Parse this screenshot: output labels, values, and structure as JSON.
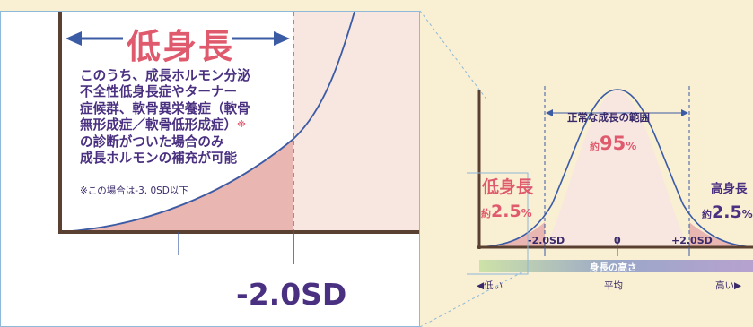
{
  "zoom_panel": {
    "title": "低身長",
    "description_lines": [
      "このうち、成長ホルモン分泌",
      "不全性低身長症やターナー",
      "症候群、軟骨異栄養症（軟骨",
      "無形成症／軟骨低形成症）"
    ],
    "description_note_mark": "※",
    "description_tail_lines": [
      "の診断がついた場合のみ",
      "成長ホルモンの補充が可能"
    ],
    "footnote": "※この場合は-3. 0SD以下",
    "threshold_label": "-2.0SD"
  },
  "overview": {
    "normal_range_label": "正常な成長の範囲",
    "normal_prefix": "約",
    "normal_value": "95",
    "normal_unit": "%",
    "low_label": "低身長",
    "low_prefix": "約",
    "low_value": "2.5",
    "low_unit": "%",
    "high_label": "高身長",
    "high_prefix": "約",
    "high_value": "2.5",
    "high_unit": "%",
    "ticks": [
      "-2.0SD",
      "0",
      "+2.0SD"
    ],
    "axis_title": "身長の高さ",
    "axis_low": "◀低い",
    "axis_mid": "平均",
    "axis_high": "高い▶"
  },
  "colors": {
    "background": "#f9efd3",
    "curve": "#3b5ba5",
    "tail_fill": "#e9b6b2",
    "body_fill": "#f8e6e0",
    "accent_red": "#e05a6e",
    "text_purple": "#4a3080",
    "dashed_line": "#3b5ba5"
  }
}
